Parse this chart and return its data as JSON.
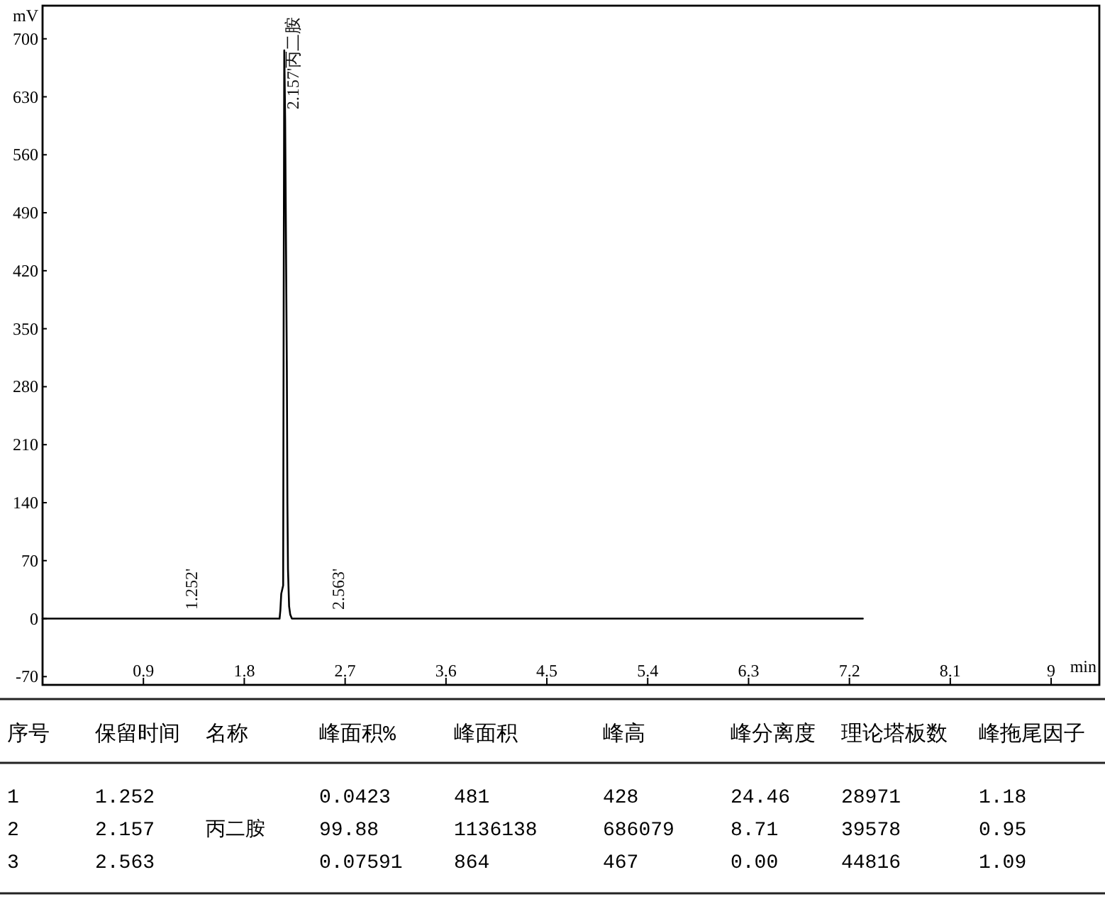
{
  "chart_data": [
    {
      "type": "line",
      "ylabel": "mV",
      "xlabel": "min",
      "color": "#000000",
      "x": [
        0,
        2.115,
        2.122,
        2.13,
        2.147,
        2.152,
        2.157,
        2.165,
        2.18,
        2.185,
        2.19,
        2.2,
        2.21,
        2.225,
        7.32
      ],
      "values": [
        0,
        0,
        10,
        30,
        40,
        400,
        686,
        600,
        300,
        139,
        60,
        15,
        5,
        0,
        0
      ],
      "xlim": [
        0,
        9.43
      ],
      "ylim": [
        -80,
        740
      ],
      "xticks": [
        0.9,
        1.8,
        2.7,
        3.6,
        4.5,
        5.4,
        6.3,
        7.2,
        8.1,
        9
      ],
      "yticks": [
        -70,
        0,
        70,
        140,
        210,
        280,
        350,
        420,
        490,
        560,
        630,
        700
      ],
      "annotations": [
        {
          "text": "1.252'",
          "x": 1.252,
          "y": 0.428
        },
        {
          "text": "2.157'丙二胺",
          "x": 2.157,
          "y": 686
        },
        {
          "text": "2.563'",
          "x": 2.563,
          "y": 0.467
        }
      ]
    },
    {
      "type": "other",
      "categories": [
        "序号",
        "保留时间",
        "名称",
        "峰面积%",
        "峰面积",
        "峰高",
        "峰分离度",
        "理论塔板数",
        "峰拖尾因子"
      ],
      "cell_labels": [
        [
          "1",
          "1.252",
          null,
          "0.0423",
          "481",
          "428",
          "24.46",
          "28971",
          "1.18"
        ],
        [
          "2",
          "2.157",
          "丙二胺",
          "99.88",
          "1136138",
          "686079",
          "8.71",
          "39578",
          "0.95"
        ],
        [
          "3",
          "2.563",
          null,
          "0.07591",
          "864",
          "467",
          "0.00",
          "44816",
          "1.09"
        ]
      ]
    }
  ]
}
